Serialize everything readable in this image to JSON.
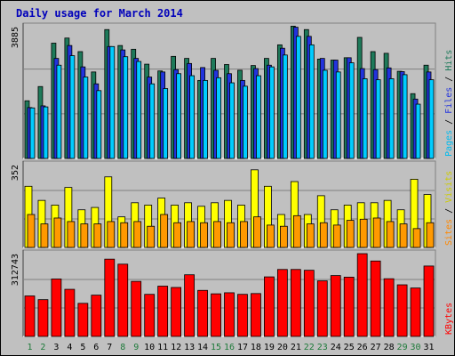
{
  "chart_data": {
    "type": "bar",
    "title": "Daily usage for March 2014",
    "categories": [
      "1",
      "2",
      "3",
      "4",
      "5",
      "6",
      "7",
      "8",
      "9",
      "10",
      "11",
      "12",
      "13",
      "14",
      "15",
      "16",
      "17",
      "18",
      "19",
      "20",
      "21",
      "22",
      "23",
      "24",
      "25",
      "26",
      "27",
      "28",
      "29",
      "30",
      "31"
    ],
    "weekend_days": [
      "1",
      "2",
      "8",
      "9",
      "15",
      "16",
      "22",
      "23",
      "29",
      "30"
    ],
    "panels": [
      {
        "ylabel_max": "3885",
        "ymax": 3885,
        "legend": [
          "Pages",
          "Files",
          "Hits"
        ],
        "series": [
          {
            "name": "Hits",
            "color": "#1e7a5a",
            "values": [
              1700,
              2120,
              3400,
              3550,
              3150,
              2550,
              3800,
              3330,
              3220,
              2780,
              2580,
              3010,
              2950,
              2300,
              2950,
              2770,
              2600,
              2740,
              2950,
              3350,
              3900,
              3800,
              2930,
              2900,
              2970,
              3570,
              3150,
              3100,
              2570,
              1910,
              2750
            ]
          },
          {
            "name": "Files",
            "color": "#2233dd",
            "values": [
              1500,
              1550,
              2950,
              3330,
              2700,
              2200,
              3300,
              3200,
              2950,
              2400,
              2550,
              2620,
              2800,
              2680,
              2600,
              2500,
              2300,
              2650,
              2750,
              3250,
              3870,
              3600,
              2950,
              2900,
              2970,
              2650,
              2620,
              2670,
              2560,
              1750,
              2550
            ]
          },
          {
            "name": "Pages",
            "color": "#00ccff",
            "values": [
              1490,
              1520,
              2750,
              3030,
              2400,
              2000,
              3300,
              3000,
              2860,
              2200,
              2060,
              2500,
              2440,
              2300,
              2380,
              2230,
              2130,
              2440,
              2700,
              3050,
              3600,
              3350,
              2600,
              2550,
              2820,
              2350,
              2320,
              2350,
              2470,
              1600,
              2320
            ]
          }
        ]
      },
      {
        "ylabel_max": "352",
        "ymax": 352,
        "legend": [
          "Sites",
          "Visits"
        ],
        "series": [
          {
            "name": "Visits",
            "color": "#ffff00",
            "values": [
              260,
              200,
              180,
              255,
              160,
              170,
              300,
              130,
              190,
              180,
              210,
              180,
              190,
              175,
              190,
              200,
              180,
              330,
              260,
              140,
              280,
              140,
              220,
              160,
              180,
              190,
              190,
              200,
              160,
              290,
              225
            ]
          },
          {
            "name": "Sites",
            "color": "#ff9900",
            "values": [
              140,
              100,
              125,
              110,
              100,
              100,
              110,
              105,
              110,
              90,
              140,
              105,
              110,
              105,
              110,
              105,
              110,
              130,
              95,
              90,
              135,
              100,
              105,
              95,
              115,
              120,
              125,
              110,
              100,
              80,
              105
            ]
          }
        ]
      },
      {
        "ylabel_max": "312743",
        "ymax": 312743,
        "legend": [
          "KBytes"
        ],
        "series": [
          {
            "name": "KBytes",
            "color": "#ff0000",
            "values": [
              153000,
              139000,
              217000,
              178000,
              125000,
              156000,
              292000,
              273000,
              208000,
              159000,
              190000,
              185000,
              233000,
              174000,
              161000,
              165000,
              159000,
              162000,
              225000,
              253000,
              253000,
              250000,
              210000,
              230000,
              224000,
              312743,
              285000,
              218000,
              195000,
              183000,
              266000
            ]
          }
        ]
      }
    ]
  }
}
